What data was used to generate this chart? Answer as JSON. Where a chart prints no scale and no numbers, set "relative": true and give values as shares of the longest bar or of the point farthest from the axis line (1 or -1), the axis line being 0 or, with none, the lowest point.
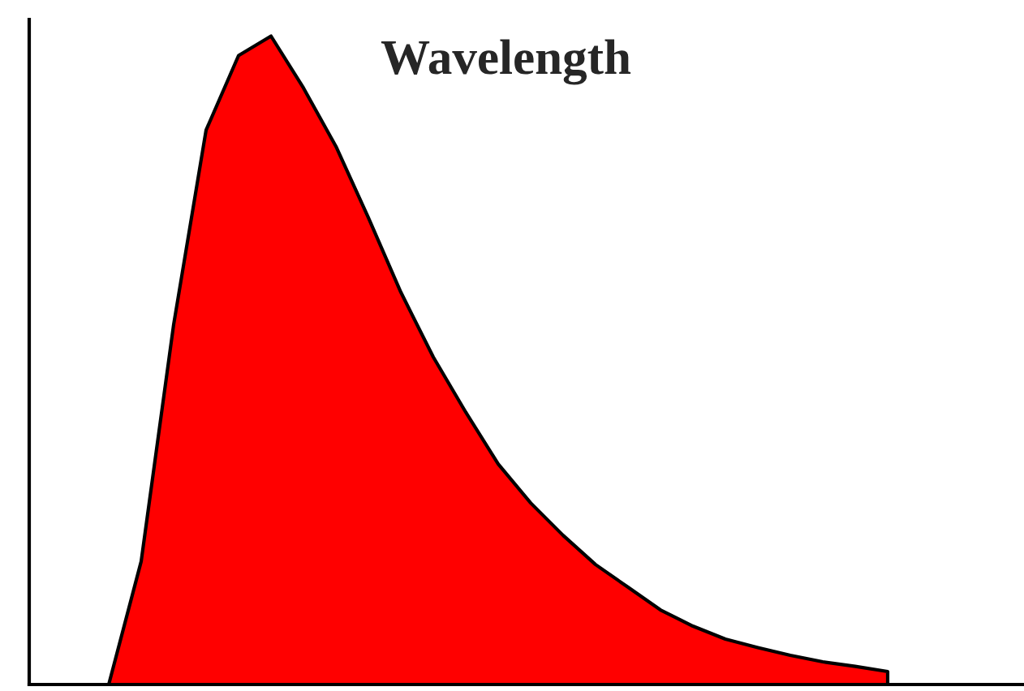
{
  "chart_data": {
    "type": "area",
    "title": "Wavelength",
    "relative": true,
    "categories": [
      null,
      null,
      null,
      null,
      null,
      null,
      null,
      null,
      null,
      null,
      null,
      null,
      null,
      null,
      null,
      null,
      null,
      null,
      null,
      null,
      null,
      null,
      null,
      null,
      null
    ],
    "series": [
      {
        "color": "#ff0000",
        "values": [
          0,
          0.19,
          0.555,
          0.855,
          0.97,
          1.0,
          0.92,
          0.83,
          0.72,
          0.605,
          0.505,
          0.42,
          0.34,
          0.28,
          0.23,
          0.185,
          0.15,
          0.115,
          0.09,
          0.07,
          0.057,
          0.045,
          0.035,
          0.028,
          0.02
        ]
      }
    ],
    "grid": false,
    "legend": false
  }
}
